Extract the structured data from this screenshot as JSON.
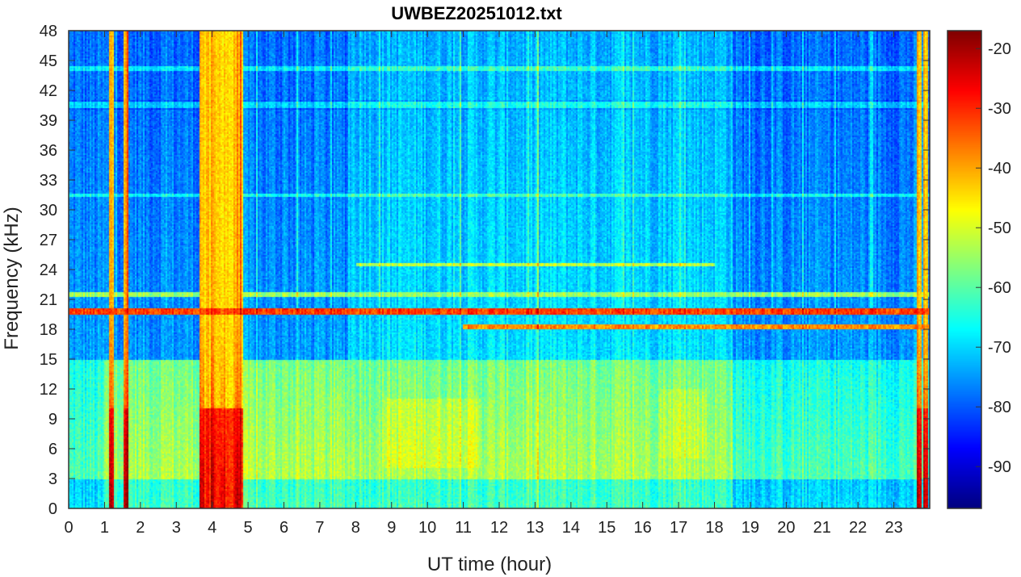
{
  "chart_data": {
    "type": "heatmap",
    "title": "UWBEZ20251012.txt",
    "xlabel": "UT time (hour)",
    "ylabel": "Frequency (kHz)",
    "xlim": [
      0,
      24
    ],
    "ylim": [
      0,
      48
    ],
    "xticks": [
      "0",
      "1",
      "2",
      "3",
      "4",
      "5",
      "6",
      "7",
      "8",
      "9",
      "10",
      "11",
      "12",
      "13",
      "14",
      "15",
      "16",
      "17",
      "18",
      "19",
      "20",
      "21",
      "22",
      "23"
    ],
    "yticks": [
      "0",
      "3",
      "6",
      "9",
      "12",
      "15",
      "18",
      "21",
      "24",
      "27",
      "30",
      "33",
      "36",
      "39",
      "42",
      "45",
      "48"
    ],
    "colorbar": {
      "colormap": "jet",
      "range": [
        -97,
        -17
      ],
      "ticks": [
        "-20",
        "-30",
        "-40",
        "-50",
        "-60",
        "-70",
        "-80",
        "-90"
      ],
      "tick_values": [
        -20,
        -30,
        -40,
        -50,
        -60,
        -70,
        -80,
        -90
      ]
    },
    "narrowband_lines_khz": [
      19.8,
      18.2
    ],
    "broadband_bursts_hours": [
      3.7,
      4.0,
      4.3,
      4.7,
      1.2,
      1.6,
      23.7,
      23.9
    ],
    "background_level_db": -75,
    "low_frequency_level_db": -50
  }
}
